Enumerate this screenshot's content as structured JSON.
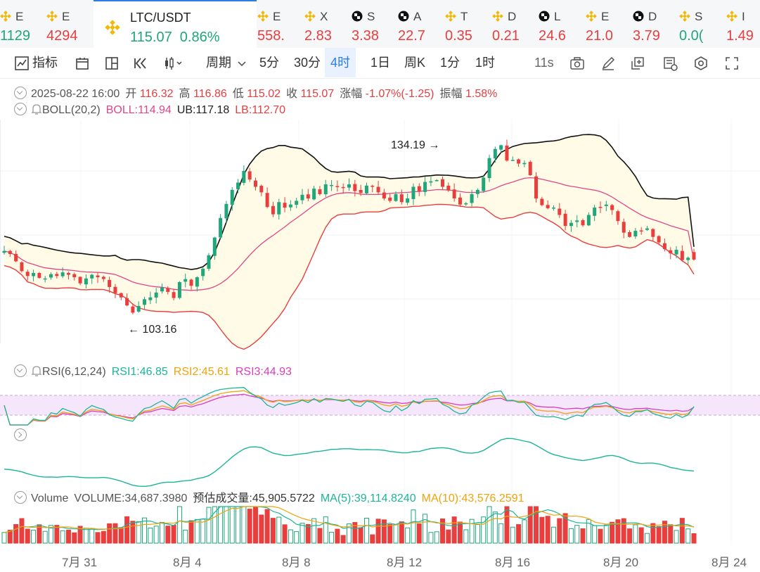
{
  "ticker": [
    {
      "sym": "E",
      "price": "1129",
      "dir": "up",
      "icon": "binance-icon"
    },
    {
      "sym": "E",
      "price": "4294",
      "dir": "dn",
      "icon": "binance-icon"
    },
    {
      "sym": "LTC/USDT",
      "price": "115.07",
      "change": "0.86%",
      "dir": "up",
      "icon": "binance-icon",
      "active": true
    },
    {
      "sym": "E",
      "price": "558.",
      "dir": "dn",
      "icon": "binance-icon"
    },
    {
      "sym": "X",
      "price": "2.83",
      "dir": "dn",
      "icon": "binance-icon"
    },
    {
      "sym": "S",
      "price": "3.38",
      "dir": "dn",
      "icon": "chequered-icon"
    },
    {
      "sym": "A",
      "price": "22.7",
      "dir": "dn",
      "icon": "chequered-icon"
    },
    {
      "sym": "T",
      "price": "0.35",
      "dir": "dn",
      "icon": "binance-icon"
    },
    {
      "sym": "D",
      "price": "0.21",
      "dir": "dn",
      "icon": "binance-icon"
    },
    {
      "sym": "L",
      "price": "24.6",
      "dir": "dn",
      "icon": "chequered-icon"
    },
    {
      "sym": "E",
      "price": "21.0",
      "dir": "dn",
      "icon": "binance-icon"
    },
    {
      "sym": "D",
      "price": "3.79",
      "dir": "dn",
      "icon": "chequered-icon"
    },
    {
      "sym": "S",
      "price": "0.0(",
      "dir": "up",
      "icon": "binance-icon"
    },
    {
      "sym": "I",
      "price": "1.49",
      "dir": "dn",
      "icon": "binance-icon"
    }
  ],
  "toolbar": {
    "indicators": "指标",
    "period": "周期",
    "intervals": [
      "5分",
      "30分",
      "4时",
      "1日",
      "周K",
      "1分",
      "1时"
    ],
    "selected_interval": "4时",
    "refresh": "11s",
    "icons": [
      "indicator-icon",
      "layout-icon",
      "split-icon",
      "replay-icon",
      "candle-type-icon",
      "camera-icon",
      "draw-pen-icon",
      "add-drawing-icon",
      "clear-drawing-icon",
      "settings-icon",
      "fullscreen-icon"
    ]
  },
  "ohlc": {
    "date": "2025-08-22 16:00",
    "open_label": "开",
    "open": "116.32",
    "high_label": "高",
    "high": "116.86",
    "low_label": "低",
    "low": "115.02",
    "close_label": "收",
    "close": "115.07",
    "change_label": "涨幅",
    "change": "-1.07%(-1.25)",
    "amp_label": "振幅",
    "amp": "1.58%"
  },
  "boll": {
    "name": "BOLL(20,2)",
    "mid": "BOLL:114.94",
    "ub": "UB:117.18",
    "lb": "LB:112.70"
  },
  "rsi": {
    "name": "RSI(6,12,24)",
    "r1": "RSI1:46.85",
    "r2": "RSI2:45.61",
    "r3": "RSI3:44.93"
  },
  "volume": {
    "name": "Volume",
    "vol": "VOLUME:34,687.3980",
    "est": "预估成交量:45,905.5722",
    "ma5": "MA(5):39,114.8240",
    "ma10": "MA(10):43,576.2591"
  },
  "annotations": {
    "high": "134.19",
    "low": "103.16"
  },
  "x_labels": [
    "7月 31",
    "8月 4",
    "8月 8",
    "8月 12",
    "8月 16",
    "8月 20",
    "8月 24"
  ],
  "colors": {
    "up": "#1fa67a",
    "down": "#e83e3e",
    "accent": "#2b7de9",
    "boll_mid": "#e0468a",
    "boll_band": "#111111",
    "boll_fill": "#fffbe6",
    "rsi1": "#1cb59a",
    "rsi2": "#f0a30a",
    "rsi3": "#d63fc0"
  },
  "chart_data": {
    "type": "candlestick",
    "symbol": "LTC/USDT",
    "interval": "4时",
    "close_series": [
      116.5,
      116.0,
      114.8,
      113.2,
      112.4,
      112.9,
      112.1,
      112.0,
      112.7,
      112.4,
      113.0,
      112.6,
      112.2,
      111.2,
      112.0,
      112.6,
      112.2,
      111.9,
      110.6,
      109.6,
      108.9,
      107.6,
      106.4,
      107.5,
      108.6,
      108.9,
      109.7,
      110.5,
      109.8,
      108.8,
      111.4,
      111.9,
      110.8,
      112.2,
      113.6,
      115.8,
      118.7,
      121.9,
      124.2,
      126.5,
      127.7,
      129.6,
      128.2,
      127.0,
      126.1,
      123.7,
      122.5,
      124.5,
      123.6,
      124.1,
      124.7,
      125.7,
      125.1,
      126.7,
      125.8,
      127.4,
      127.3,
      127.0,
      126.8,
      127.4,
      126.3,
      126.0,
      127.2,
      127.0,
      126.1,
      125.1,
      124.7,
      125.8,
      124.5,
      125.1,
      127.0,
      126.3,
      127.8,
      127.9,
      128.1,
      127.0,
      126.4,
      125.1,
      124.1,
      124.3,
      125.8,
      126.5,
      128.5,
      131.7,
      133.2,
      133.8,
      131.3,
      131.4,
      130.8,
      130.9,
      128.9,
      125.1,
      124.0,
      123.5,
      123.6,
      122.4,
      120.6,
      121.1,
      121.5,
      120.7,
      122.4,
      123.6,
      123.7,
      124.1,
      123.2,
      121.4,
      119.5,
      118.8,
      119.8,
      119.8,
      120.2,
      118.8,
      117.9,
      116.8,
      116.1,
      116.7,
      115.0,
      115.4,
      115.1
    ],
    "ylim_visible": [
      103.16,
      134.19
    ],
    "annotated_high": 134.19,
    "annotated_low": 103.16,
    "last": {
      "open": 116.32,
      "high": 116.86,
      "low": 115.02,
      "close": 115.07
    },
    "boll_last": {
      "mid": 114.94,
      "ub": 117.18,
      "lb": 112.7
    },
    "rsi_last": {
      "rsi1": 46.85,
      "rsi2": 45.61,
      "rsi3": 44.93
    },
    "volume_last": 34687.398,
    "x_tick_labels": [
      "7月 31",
      "8月 4",
      "8月 8",
      "8月 12",
      "8月 16",
      "8月 20",
      "8月 24"
    ]
  }
}
